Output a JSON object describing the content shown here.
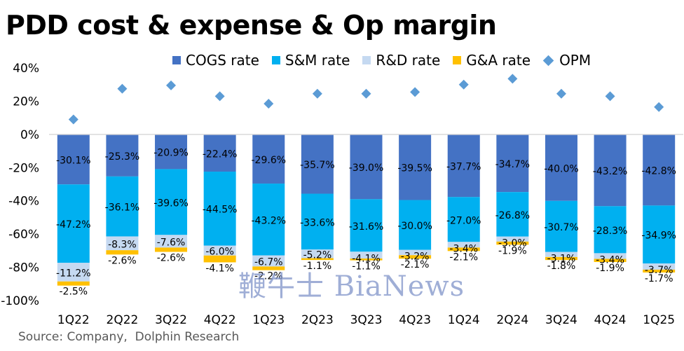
{
  "chart_data": {
    "type": "bar",
    "subtype": "stacked-bar-with-scatter",
    "title": "PDD cost & expense & Op margin",
    "categories": [
      "1Q22",
      "2Q22",
      "3Q22",
      "4Q22",
      "1Q23",
      "2Q23",
      "3Q23",
      "4Q23",
      "1Q24",
      "2Q24",
      "3Q24",
      "4Q24",
      "1Q25"
    ],
    "series": [
      {
        "name": "COGS rate",
        "color": "#4472c4",
        "values": [
          -30.1,
          -25.3,
          -20.9,
          -22.4,
          -29.6,
          -35.7,
          -39.0,
          -39.5,
          -37.7,
          -34.7,
          -40.0,
          -43.2,
          -42.8
        ],
        "labels": [
          "-30.1%",
          "-25.3%",
          "-20.9%",
          "-22.4%",
          "-29.6%",
          "-35.7%",
          "-39.0%",
          "-39.5%",
          "-37.7%",
          "-34.7%",
          "-40.0%",
          "-43.2%",
          "-42.8%"
        ]
      },
      {
        "name": "S&M rate",
        "color": "#00b0f0",
        "values": [
          -47.2,
          -36.1,
          -39.6,
          -44.5,
          -43.2,
          -33.6,
          -31.6,
          -30.0,
          -27.0,
          -26.8,
          -30.7,
          -28.3,
          -34.9
        ],
        "labels": [
          "-47.2%",
          "-36.1%",
          "-39.6%",
          "-44.5%",
          "-43.2%",
          "-33.6%",
          "-31.6%",
          "-30.0%",
          "-27.0%",
          "-26.8%",
          "-30.7%",
          "-28.3%",
          "-34.9%"
        ]
      },
      {
        "name": "R&D rate",
        "color": "#c5d9f1",
        "values": [
          -11.2,
          -8.3,
          -7.6,
          -6.0,
          -6.7,
          -5.2,
          -4.1,
          -3.2,
          -3.4,
          -3.0,
          -3.1,
          -3.4,
          -3.7
        ],
        "labels": [
          "-11.2%",
          "-8.3%",
          "-7.6%",
          "-6.0%",
          "-6.7%",
          "-5.2%",
          "-4.1%",
          "-3.2%",
          "-3.4%",
          "-3.0%",
          "-3.1%",
          "-3.4%",
          "-3.7%"
        ]
      },
      {
        "name": "G&A rate",
        "color": "#ffc000",
        "values": [
          -2.5,
          -2.6,
          -2.6,
          -4.1,
          -2.2,
          -1.1,
          -1.1,
          -2.1,
          -2.1,
          -1.9,
          -1.8,
          -1.9,
          -1.7
        ],
        "labels": [
          "-2.5%",
          "-2.6%",
          "-2.6%",
          "-4.1%",
          "-2.2%",
          "-1.1%",
          "-1.1%",
          "-2.1%",
          "-2.1%",
          "-1.9%",
          "-1.8%",
          "-1.9%",
          "-1.7%"
        ]
      }
    ],
    "opm": {
      "name": "OPM",
      "color": "#5b9bd5",
      "values": [
        9,
        27.5,
        29.5,
        23,
        18.5,
        24.5,
        24.5,
        25.5,
        30,
        33.5,
        24.5,
        23,
        16.5
      ]
    },
    "ylim": [
      -100,
      40
    ],
    "yticks": [
      40,
      20,
      0,
      -20,
      -40,
      -60,
      -80,
      -100
    ],
    "ytick_labels": [
      "40%",
      "20%",
      "0%",
      "-20%",
      "-40%",
      "-60%",
      "-80%",
      "-100%"
    ],
    "xlabel": "",
    "ylabel": "",
    "grid": false,
    "legend": "top"
  },
  "legend_items": [
    {
      "label": "COGS rate",
      "color": "#4472c4"
    },
    {
      "label": "S&M rate",
      "color": "#00b0f0"
    },
    {
      "label": "R&D rate",
      "color": "#c5d9f1"
    },
    {
      "label": "G&A rate",
      "color": "#ffc000"
    },
    {
      "label": "OPM",
      "color": "#5b9bd5"
    }
  ],
  "source": "Source: Company,  Dolphin Research",
  "watermark": "鞭牛士 BiaNews"
}
